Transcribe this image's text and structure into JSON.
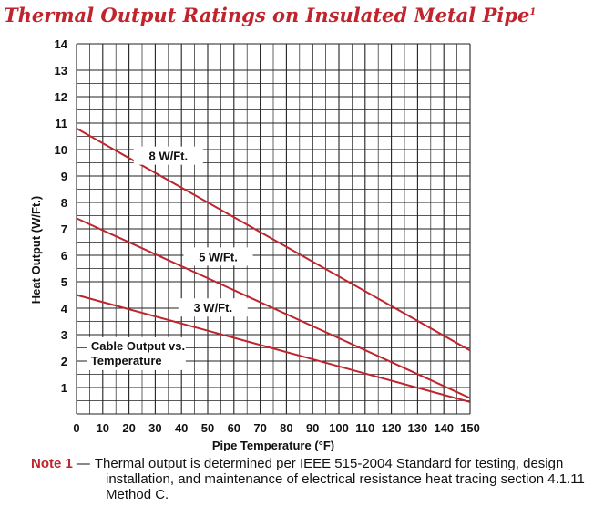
{
  "chart_data": {
    "type": "line",
    "title": "Thermal Output Ratings on Insulated Metal Pipe",
    "title_sup": "1",
    "xlabel": "Pipe Temperature (°F)",
    "ylabel": "Heat Output (W/Ft.)",
    "xlim": [
      0,
      150
    ],
    "ylim": [
      0,
      14
    ],
    "xticks": [
      0,
      10,
      20,
      30,
      40,
      50,
      60,
      70,
      80,
      90,
      100,
      110,
      120,
      130,
      140,
      150
    ],
    "yticks": [
      1,
      2,
      3,
      4,
      5,
      6,
      7,
      8,
      9,
      10,
      11,
      12,
      13,
      14
    ],
    "grid": true,
    "line_color": "#c0242c",
    "series": [
      {
        "name": "8 W/Ft.",
        "x": [
          0,
          150
        ],
        "y": [
          10.8,
          2.4
        ]
      },
      {
        "name": "5 W/Ft.",
        "x": [
          0,
          150
        ],
        "y": [
          7.4,
          0.6
        ]
      },
      {
        "name": "3 W/Ft.",
        "x": [
          0,
          150
        ],
        "y": [
          4.5,
          0.45
        ]
      }
    ],
    "annotation": [
      "Cable Output vs.",
      "Temperature"
    ]
  },
  "note": {
    "label": "Note 1",
    "dash": "—",
    "line1": "Thermal output is determined per IEEE 515-2004 Standard for testing, design",
    "line2": "installation, and maintenance of electrical resistance heat tracing section 4.1.11",
    "line3": "Method C."
  }
}
